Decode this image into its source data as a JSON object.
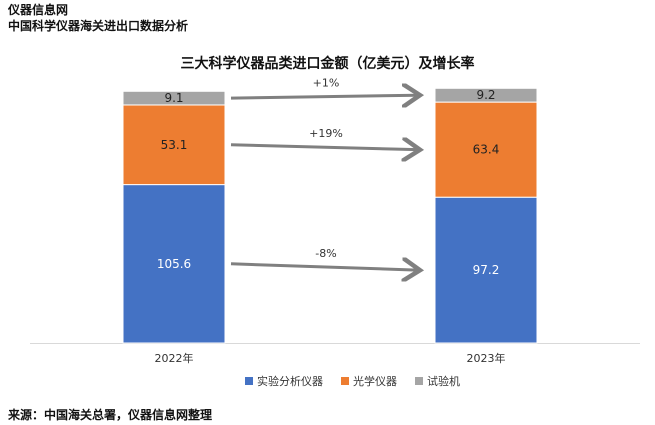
{
  "header": {
    "brand": "仪器信息网",
    "subtitle": "中国科学仪器海关进出口数据分析"
  },
  "footer": {
    "source": "来源：中国海关总署，仪器信息网整理"
  },
  "colors": {
    "实验分析仪器": "#4472C4",
    "光学仪器": "#ED7D31",
    "试验机": "#A5A5A5",
    "arrow": "#808080"
  },
  "chart_data": {
    "type": "bar",
    "stacked": true,
    "title": "三大科学仪器品类进口金额（亿美元）及增长率",
    "categories": [
      "2022年",
      "2023年"
    ],
    "series": [
      {
        "name": "实验分析仪器",
        "values": [
          105.6,
          97.2
        ]
      },
      {
        "name": "光学仪器",
        "values": [
          53.1,
          63.4
        ]
      },
      {
        "name": "试验机",
        "values": [
          9.1,
          9.2
        ]
      }
    ],
    "growth_annotations": [
      {
        "series": "试验机",
        "label": "+1%"
      },
      {
        "series": "光学仪器",
        "label": "+19%"
      },
      {
        "series": "实验分析仪器",
        "label": "-8%"
      }
    ],
    "legend_position": "bottom",
    "grid": false,
    "xlabel": "",
    "ylabel": ""
  }
}
